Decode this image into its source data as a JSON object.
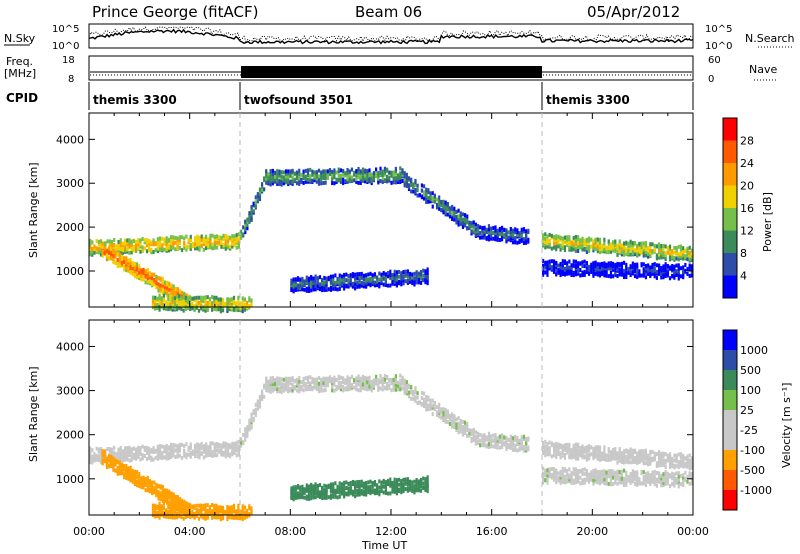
{
  "header": {
    "station": "Prince George (fitACF)",
    "beam": "Beam 06",
    "date": "05/Apr/2012"
  },
  "strip": {
    "nsky_label": "N.Sky",
    "nsearch_label": "N.Search",
    "nsky_ticks": [
      "10^5",
      "10^0"
    ],
    "nsearch_ticks": [
      "10^5",
      "10^0"
    ],
    "freq_label_1": "Freq.",
    "freq_label_2": "[MHz]",
    "freq_ticks": [
      "18",
      "8"
    ],
    "nave_label": "Nave",
    "nave_ticks": [
      "60",
      "0"
    ],
    "cpid_label": "CPID"
  },
  "cpid_segments": [
    {
      "name": "themis 3300",
      "start_h": 0,
      "end_h": 6
    },
    {
      "name": "twofsound 3501",
      "start_h": 6,
      "end_h": 18
    },
    {
      "name": "themis 3300",
      "start_h": 18,
      "end_h": 24
    }
  ],
  "axes": {
    "xlabel": "Time UT",
    "xticks": [
      "00:00",
      "04:00",
      "08:00",
      "12:00",
      "16:00",
      "20:00",
      "00:00"
    ],
    "ylabel": "Slant Range [km]",
    "yticks": [
      "1000",
      "2000",
      "3000",
      "4000"
    ],
    "xlim_h": [
      0,
      24
    ],
    "ylim_km": [
      180,
      4600
    ]
  },
  "colors": {
    "power": [
      "#0000ff",
      "#2d4ea8",
      "#3b8b5a",
      "#74c04a",
      "#f0d000",
      "#ff9a00",
      "#ff5a00",
      "#ff0000"
    ],
    "velocity": [
      "#ff0000",
      "#ff5a00",
      "#ffa000",
      "#c8c8c8",
      "#c8c8c8",
      "#74c04a",
      "#3b8b5a",
      "#2d4ea8",
      "#0000ff"
    ]
  },
  "power_scale": {
    "label": "Power [dB]",
    "ticks": [
      "4",
      "8",
      "12",
      "16",
      "20",
      "24",
      "28"
    ]
  },
  "velocity_scale": {
    "label": "Velocity  [m s⁻¹]",
    "ticks": [
      "-1000",
      "-500",
      "-100",
      "-25",
      "25",
      "100",
      "500",
      "1000"
    ]
  },
  "chart_data": {
    "type": "heatmap",
    "panels": [
      "power",
      "velocity"
    ],
    "x_range_hours": [
      0,
      24
    ],
    "y_range_km": [
      180,
      4600
    ],
    "echo_bands": [
      {
        "t_start_h": 0.0,
        "t_end_h": 6.0,
        "range_km_start": 1550,
        "range_km_end": 1700,
        "power_db": 22,
        "velocity_ms": -20
      },
      {
        "t_start_h": 0.5,
        "t_end_h": 4.0,
        "range_km_start": 1500,
        "range_km_end": 300,
        "power_db": 26,
        "velocity_ms": -400
      },
      {
        "t_start_h": 2.5,
        "t_end_h": 6.5,
        "range_km_start": 300,
        "range_km_end": 250,
        "power_db": 20,
        "velocity_ms": -150
      },
      {
        "t_start_h": 6.0,
        "t_end_h": 7.0,
        "range_km_start": 1800,
        "range_km_end": 3100,
        "power_db": 14,
        "velocity_ms": 0
      },
      {
        "t_start_h": 7.0,
        "t_end_h": 12.5,
        "range_km_start": 3150,
        "range_km_end": 3200,
        "power_db": 14,
        "velocity_ms": 0
      },
      {
        "t_start_h": 12.5,
        "t_end_h": 15.5,
        "range_km_start": 3100,
        "range_km_end": 1900,
        "power_db": 12,
        "velocity_ms": 0
      },
      {
        "t_start_h": 15.5,
        "t_end_h": 17.5,
        "range_km_start": 1900,
        "range_km_end": 1800,
        "power_db": 10,
        "velocity_ms": 0
      },
      {
        "t_start_h": 18.0,
        "t_end_h": 24.0,
        "range_km_start": 1700,
        "range_km_end": 1400,
        "power_db": 20,
        "velocity_ms": -20
      },
      {
        "t_start_h": 18.0,
        "t_end_h": 24.0,
        "range_km_start": 1100,
        "range_km_end": 1000,
        "power_db": 6,
        "velocity_ms": 0
      },
      {
        "t_start_h": 8.0,
        "t_end_h": 13.5,
        "range_km_start": 700,
        "range_km_end": 900,
        "power_db": 10,
        "velocity_ms": 150
      }
    ]
  }
}
